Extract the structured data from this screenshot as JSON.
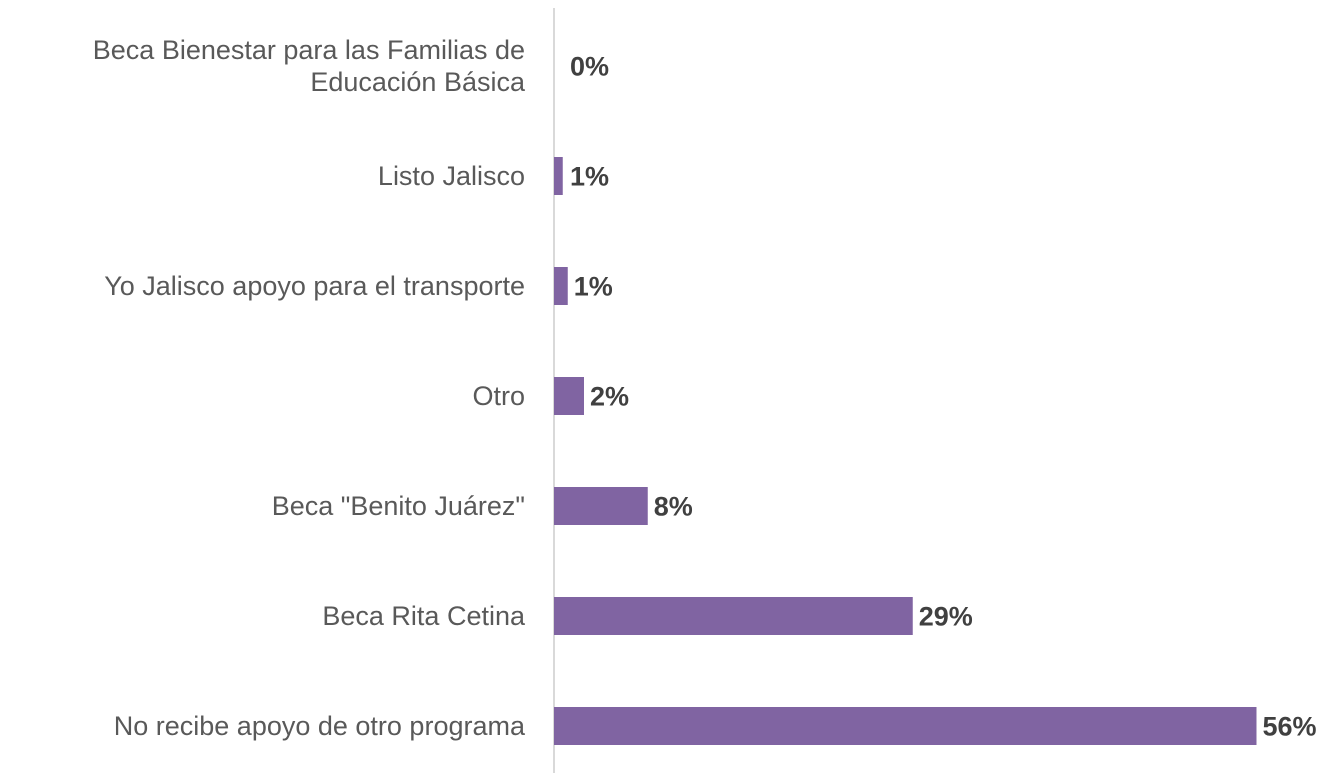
{
  "chart_data": {
    "type": "barh",
    "categories": [
      "Beca Bienestar para las Familias de Educación Básica",
      "Listo Jalisco",
      "Yo Jalisco apoyo para el transporte",
      "Otro",
      "Beca \"Benito Juárez\"",
      "Beca Rita Cetina",
      "No recibe apoyo de otro programa"
    ],
    "values": [
      0,
      0.7,
      1.1,
      2.4,
      7.5,
      28.7,
      56.2
    ],
    "value_labels": [
      "0%",
      "1%",
      "1%",
      "2%",
      "8%",
      "29%",
      "56%"
    ],
    "color": "#8064a2",
    "xlim": [
      0,
      60
    ]
  }
}
